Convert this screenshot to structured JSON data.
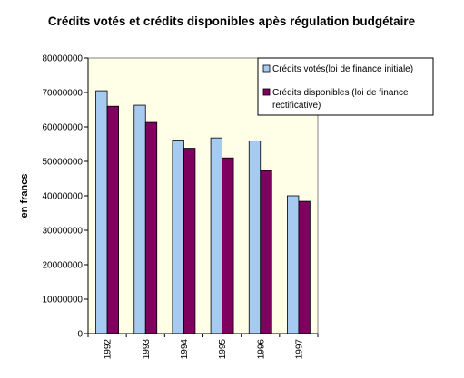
{
  "chart_data": {
    "type": "bar",
    "title": "Crédits votés et crédits disponibles apès régulation budgétaire",
    "xlabel": "",
    "ylabel": "en francs",
    "categories": [
      "1992",
      "1993",
      "1994",
      "1995",
      "1996",
      "1997"
    ],
    "ylim": [
      0,
      80000000
    ],
    "yticks": [
      "0",
      "10000000",
      "20000000",
      "30000000",
      "40000000",
      "50000000",
      "60000000",
      "70000000",
      "80000000"
    ],
    "grid": false,
    "legend_position": "top-right",
    "plot_background": "#FFFFE8",
    "series": [
      {
        "name": "Crédits votés(loi de finance initiale)",
        "color": "#A6CAF0",
        "values": [
          70500000,
          66300000,
          56200000,
          56800000,
          55900000,
          40000000
        ]
      },
      {
        "name": "Crédits disponibles (loi de finance rectificative)",
        "color": "#800060",
        "values": [
          66000000,
          61300000,
          53800000,
          51000000,
          47300000,
          38400000
        ]
      }
    ]
  },
  "legend": {
    "series1_label": "Crédits votés(loi de finance initiale)",
    "series2_line1": "Crédits disponibles (loi de finance",
    "series2_line2": "rectificative)"
  }
}
